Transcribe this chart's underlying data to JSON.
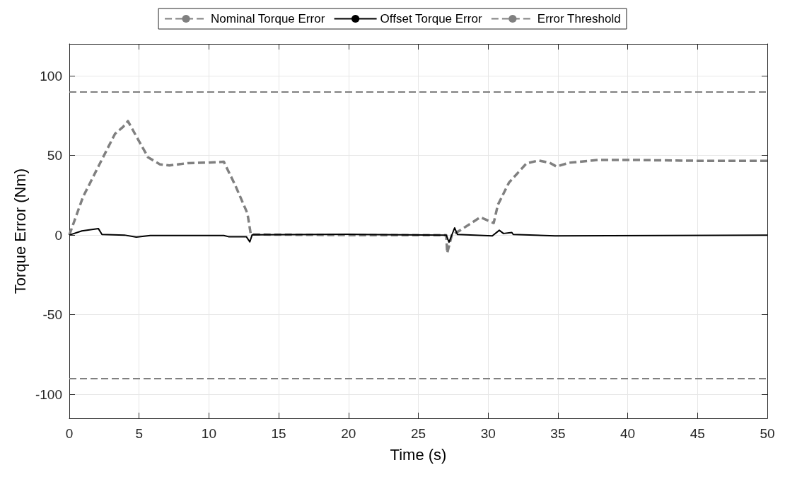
{
  "chart_data": {
    "type": "line",
    "xlabel": "Time (s)",
    "ylabel": "Torque Error (Nm)",
    "xlim": [
      0,
      50
    ],
    "xticks": [
      0,
      5,
      10,
      15,
      20,
      25,
      30,
      35,
      40,
      45,
      50
    ],
    "ylim": [
      -115,
      120
    ],
    "yticks": [
      -100,
      -50,
      0,
      50,
      100
    ],
    "grid": true,
    "legend": "top",
    "marker": "none",
    "series": [
      {
        "name": "Nominal Torque Error",
        "color": "#808080",
        "line_style": "dashed",
        "x": [
          0,
          0.98,
          2.08,
          3.27,
          3.86,
          4.2,
          4.8,
          5.64,
          6.5,
          7.17,
          8.5,
          9.9,
          11.07,
          11.9,
          12.76,
          13.0,
          20,
          27.0,
          27.07,
          27.4,
          28.0,
          29.44,
          30.4,
          30.7,
          31.5,
          32.75,
          33.6,
          34.4,
          34.9,
          35.8,
          37.9,
          40,
          45.1,
          50
        ],
        "values": [
          0,
          23.9,
          43,
          63.5,
          68,
          71.5,
          62,
          48.8,
          44.4,
          43.7,
          45.2,
          45.5,
          46,
          31,
          13.6,
          0.4,
          0,
          0,
          -11.3,
          0,
          3,
          11.2,
          7.6,
          19,
          33,
          45,
          46.8,
          45.4,
          43,
          45.4,
          47.2,
          47.2,
          46.6,
          46.6
        ]
      },
      {
        "name": "Offset Torque Error",
        "color": "#000000",
        "line_style": "solid",
        "x": [
          0,
          0.9,
          2.08,
          2.34,
          3.95,
          4.8,
          5.8,
          11.07,
          11.4,
          12.68,
          12.93,
          13.1,
          20,
          27.0,
          27.2,
          27.6,
          27.8,
          30.3,
          30.8,
          31.1,
          31.7,
          31.8,
          34.8,
          50
        ],
        "values": [
          0,
          2.6,
          4.1,
          0.4,
          0,
          -1.3,
          -0.3,
          -0.3,
          -1,
          -1,
          -4.3,
          0.2,
          0.5,
          0,
          -4.5,
          4.5,
          0.4,
          -0.5,
          3,
          1,
          1.6,
          0.4,
          -0.5,
          0
        ]
      }
    ],
    "ref_lines": [
      {
        "axis": "y",
        "value": 90,
        "label": "Error Threshold",
        "color": "#808080",
        "line_style": "dashed"
      },
      {
        "axis": "y",
        "value": -90,
        "color": "#808080",
        "line_style": "dashed"
      }
    ]
  }
}
